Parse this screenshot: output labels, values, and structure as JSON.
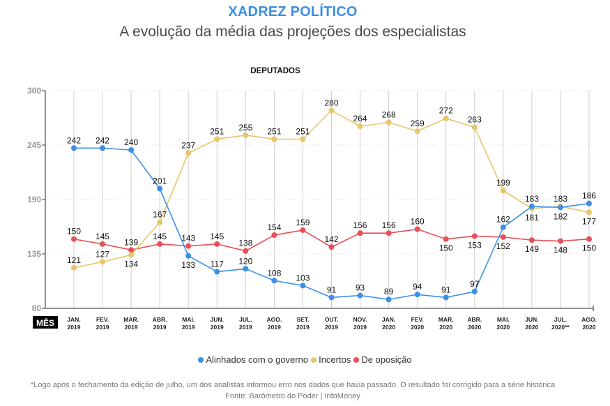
{
  "header": {
    "title": "XADREZ POLÍTICO",
    "subtitle": "A evolução da média das projeções dos especialistas"
  },
  "chart_data": {
    "type": "line",
    "title": "DEPUTADOS",
    "xlabel": "MÊS",
    "ylabel": "",
    "ylim": [
      80,
      300
    ],
    "yticks": [
      80,
      135,
      190,
      245,
      300
    ],
    "grid": "vertical solid per month, horizontal dotted per y tick",
    "categories": [
      {
        "month": "JAN.",
        "year": "2019"
      },
      {
        "month": "FEV.",
        "year": "2019"
      },
      {
        "month": "MAR.",
        "year": "2019"
      },
      {
        "month": "ABR.",
        "year": "2019"
      },
      {
        "month": "MAI.",
        "year": "2019"
      },
      {
        "month": "JUN.",
        "year": "2019"
      },
      {
        "month": "JUL.",
        "year": "2019"
      },
      {
        "month": "AGO.",
        "year": "2019"
      },
      {
        "month": "SET.",
        "year": "2019"
      },
      {
        "month": "OUT.",
        "year": "2019"
      },
      {
        "month": "NOV.",
        "year": "2019"
      },
      {
        "month": "JAN.",
        "year": "2020"
      },
      {
        "month": "FEV.",
        "year": "2020"
      },
      {
        "month": "MAR.",
        "year": "2020"
      },
      {
        "month": "ABR.",
        "year": "2020"
      },
      {
        "month": "MAI.",
        "year": "2020"
      },
      {
        "month": "JUN.",
        "year": "2020"
      },
      {
        "month": "JUL.",
        "year": "2020**"
      },
      {
        "month": "AGO.",
        "year": "2020"
      }
    ],
    "series": [
      {
        "name": "Alinhados com o governo",
        "color": "#3b8fe8",
        "values": [
          242,
          242,
          240,
          201,
          133,
          117,
          120,
          108,
          103,
          91,
          93,
          89,
          94,
          91,
          97,
          162,
          183,
          182,
          186
        ],
        "label_pos": [
          "above",
          "above",
          "above",
          "above",
          "below",
          "above",
          "above",
          "above",
          "above",
          "above",
          "above",
          "above",
          "above",
          "above",
          "above",
          "above",
          "above",
          "below",
          "above"
        ]
      },
      {
        "name": "Incertos",
        "color": "#eac46b",
        "values": [
          121,
          127,
          134,
          167,
          237,
          251,
          255,
          251,
          251,
          280,
          264,
          268,
          259,
          272,
          263,
          199,
          181,
          183,
          177
        ],
        "label_pos": [
          "above",
          "above",
          "below",
          "above",
          "above",
          "above",
          "above",
          "above",
          "above",
          "above",
          "above",
          "above",
          "above",
          "above",
          "above",
          "above",
          "below",
          "above",
          "below"
        ]
      },
      {
        "name": "De oposição",
        "color": "#e84f57",
        "values": [
          150,
          145,
          139,
          145,
          143,
          145,
          138,
          154,
          159,
          142,
          156,
          156,
          160,
          150,
          153,
          152,
          149,
          148,
          150
        ],
        "label_pos": [
          "above",
          "above",
          "above",
          "above",
          "above",
          "above",
          "above",
          "above",
          "above",
          "above",
          "above",
          "above",
          "above",
          "below",
          "below",
          "below",
          "below",
          "below",
          "below"
        ]
      }
    ],
    "legend": "bottom-center"
  },
  "footer": {
    "note": "*Logo após o fechamento da edição de julho, um dos analistas informou erro nos dados que havia passado. O resultado foi corrigido para a série histórica",
    "source": "Fonte: Barômetro do Poder | InfoMoney"
  }
}
